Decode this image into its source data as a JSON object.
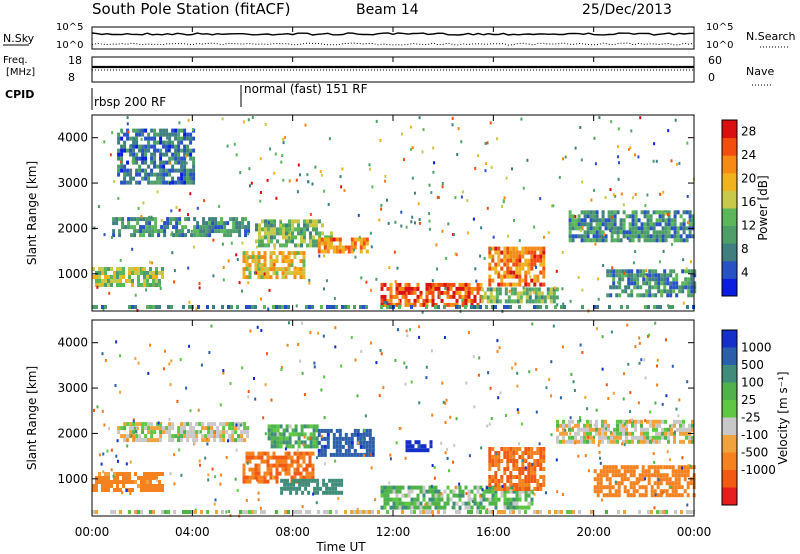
{
  "header": {
    "title": "South Pole Station (fitACF)",
    "beam": "Beam 14",
    "date": "25/Dec/2013"
  },
  "left_labels": {
    "nsky": "N.Sky",
    "freq_top": "Freq.",
    "freq_unit": "[MHz]",
    "cpid": "CPID"
  },
  "right_labels": {
    "nsearch": "N.Search",
    "nave": "Nave"
  },
  "noise_axis": {
    "top": "10^5",
    "bottom": "10^0"
  },
  "freq_axis": {
    "top": "18",
    "bottom": "8"
  },
  "nave_axis": {
    "top": "60",
    "bottom": "0"
  },
  "cpid_segments": [
    {
      "label": "rbsp 200 RF",
      "start_hour": 0
    },
    {
      "label": "normal (fast) 151 RF",
      "start_hour": 6
    }
  ],
  "chart_data": [
    {
      "type": "heatmap",
      "panel": "power",
      "ylabel": "Slant Range [km]",
      "xlabel": "Time UT",
      "xlim_hours": [
        0,
        24
      ],
      "ylim_km": [
        180,
        4500
      ],
      "x_ticks": [
        "00:00",
        "04:00",
        "08:00",
        "12:00",
        "16:00",
        "20:00",
        "00:00"
      ],
      "y_ticks": [
        "1000",
        "2000",
        "3000",
        "4000"
      ],
      "colorbar": {
        "label": "Power [dB]",
        "ticks": [
          "4",
          "8",
          "12",
          "16",
          "20",
          "24",
          "28"
        ],
        "range": [
          0,
          30
        ],
        "colors": [
          "#0b1ee0",
          "#2752c4",
          "#3f7f7f",
          "#4e9e6a",
          "#5cb65a",
          "#c8c84a",
          "#f0b21e",
          "#f58a14",
          "#f24e10",
          "#d81010"
        ]
      },
      "echo_regions": [
        {
          "t0": 0.8,
          "t1": 6.2,
          "r0": 1850,
          "r1": 2250,
          "power": 8
        },
        {
          "t0": 0.0,
          "t1": 2.8,
          "r0": 750,
          "r1": 1150,
          "power": 14
        },
        {
          "t0": 6.0,
          "t1": 8.5,
          "r0": 900,
          "r1": 1500,
          "power": 18
        },
        {
          "t0": 6.5,
          "t1": 9.5,
          "r0": 1600,
          "r1": 2200,
          "power": 12
        },
        {
          "t0": 9.0,
          "t1": 11.0,
          "r0": 1450,
          "r1": 1800,
          "power": 22
        },
        {
          "t0": 11.5,
          "t1": 15.5,
          "r0": 300,
          "r1": 800,
          "power": 24
        },
        {
          "t0": 15.5,
          "t1": 18.5,
          "r0": 400,
          "r1": 700,
          "power": 12
        },
        {
          "t0": 15.8,
          "t1": 18.0,
          "r0": 800,
          "r1": 1600,
          "power": 22
        },
        {
          "t0": 19.0,
          "t1": 24.0,
          "r0": 1700,
          "r1": 2400,
          "power": 8
        },
        {
          "t0": 20.5,
          "t1": 24.0,
          "r0": 500,
          "r1": 1100,
          "power": 8
        },
        {
          "t0": 1.0,
          "t1": 4.0,
          "r0": 3000,
          "r1": 4200,
          "power": 6
        }
      ]
    },
    {
      "type": "heatmap",
      "panel": "velocity",
      "ylabel": "Slant Range [km]",
      "xlabel": "Time UT",
      "xlim_hours": [
        0,
        24
      ],
      "ylim_km": [
        180,
        4500
      ],
      "x_ticks": [
        "00:00",
        "04:00",
        "08:00",
        "12:00",
        "16:00",
        "20:00",
        "00:00"
      ],
      "y_ticks": [
        "1000",
        "2000",
        "3000",
        "4000"
      ],
      "colorbar": {
        "label": "Velocity [m s⁻¹]",
        "ticks": [
          "1000",
          "500",
          "100",
          "25",
          "-25",
          "-100",
          "-500",
          "-1000"
        ],
        "colors_top_to_bottom": [
          "#1430c8",
          "#2c5faa",
          "#3f8c7a",
          "#4fb24a",
          "#5ec845",
          "#c8c8c8",
          "#f0a23c",
          "#f5821e",
          "#f25a14",
          "#e81e1e"
        ]
      },
      "echo_regions": [
        {
          "t0": 1.0,
          "t1": 6.2,
          "r0": 1850,
          "r1": 2250,
          "velocity": 0
        },
        {
          "t0": 0.0,
          "t1": 2.8,
          "r0": 750,
          "r1": 1150,
          "velocity": -150
        },
        {
          "t0": 6.0,
          "t1": 8.8,
          "r0": 900,
          "r1": 1600,
          "velocity": -300
        },
        {
          "t0": 7.0,
          "t1": 9.0,
          "r0": 1700,
          "r1": 2200,
          "velocity": 80
        },
        {
          "t0": 9.0,
          "t1": 11.2,
          "r0": 1500,
          "r1": 2100,
          "velocity": 700
        },
        {
          "t0": 7.5,
          "t1": 10.0,
          "r0": 700,
          "r1": 1000,
          "velocity": 200
        },
        {
          "t0": 11.5,
          "t1": 17.5,
          "r0": 350,
          "r1": 850,
          "velocity": 60
        },
        {
          "t0": 15.8,
          "t1": 18.0,
          "r0": 800,
          "r1": 1700,
          "velocity": -300
        },
        {
          "t0": 18.5,
          "t1": 24.0,
          "r0": 1800,
          "r1": 2300,
          "velocity": 0
        },
        {
          "t0": 20.0,
          "t1": 24.0,
          "r0": 600,
          "r1": 1300,
          "velocity": -200
        },
        {
          "t0": 12.5,
          "t1": 13.5,
          "r0": 1600,
          "r1": 1850,
          "velocity": 800
        }
      ]
    }
  ]
}
